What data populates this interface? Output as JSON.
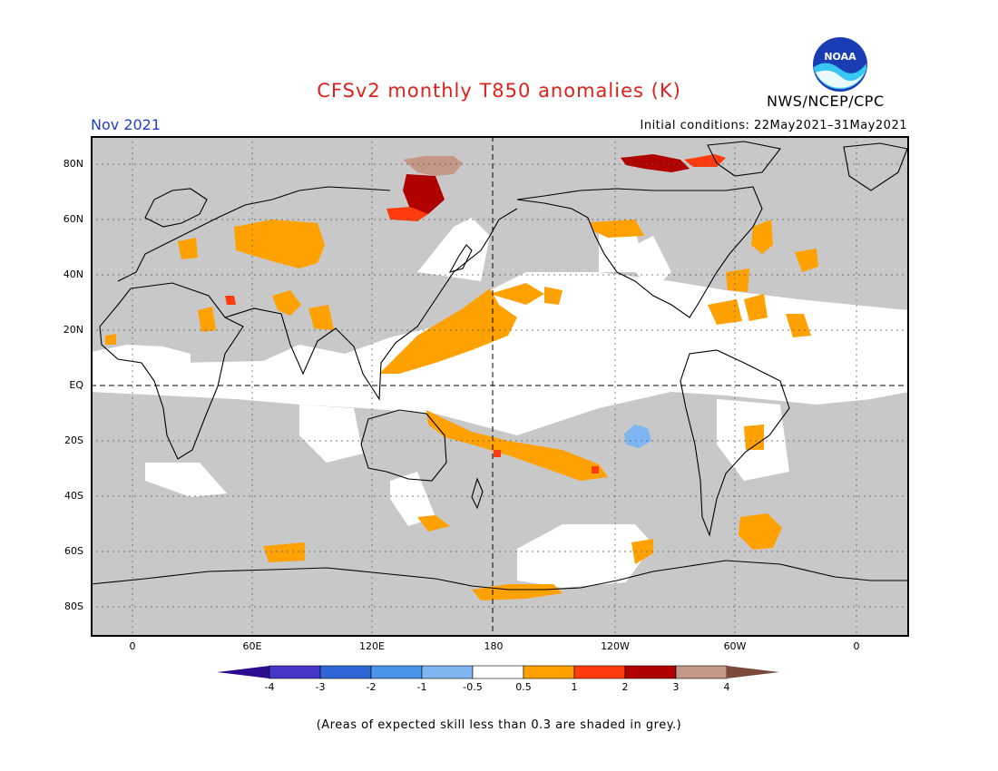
{
  "title": "CFSv2 monthly T850 anomalies (K)",
  "period": "Nov 2021",
  "initial_conditions": "Initial conditions: 22May2021–31May2021",
  "agency": "NWS/NCEP/CPC",
  "logo_icon": "noaa-logo-icon",
  "logo_text": "NOAA",
  "lat_labels": [
    "80N",
    "60N",
    "40N",
    "20N",
    "EQ",
    "20S",
    "40S",
    "60S",
    "80S"
  ],
  "lon_labels": [
    "0",
    "60E",
    "120E",
    "180",
    "120W",
    "60W",
    "0"
  ],
  "colorbar": {
    "ticks": [
      "-4",
      "-3",
      "-2",
      "-1",
      "-0.5",
      "0.5",
      "1",
      "2",
      "3",
      "4"
    ],
    "colors": [
      "#2b0b8f",
      "#4637c9",
      "#2f66d6",
      "#4a95ea",
      "#7fb6f2",
      "#ffffff",
      "#ffa100",
      "#ff3c0e",
      "#b00000",
      "#c59787",
      "#7a4a3a"
    ]
  },
  "footnote": "(Areas of expected skill less than 0.3 are shaded in grey.)",
  "colors": {
    "grey": "#c8c8c8",
    "white": "#ffffff",
    "warm1": "#ffa100",
    "warm2": "#ff3c0e",
    "warm3": "#b00000",
    "warm4": "#c59787",
    "cool1": "#7fb6f2",
    "title": "#e0201b",
    "period": "#1f3fd0"
  }
}
